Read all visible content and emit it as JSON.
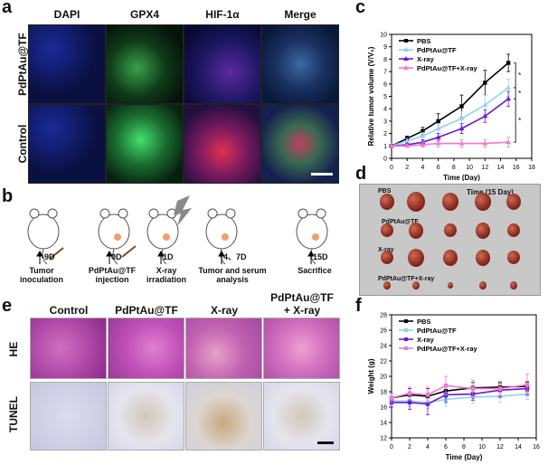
{
  "panels": {
    "a": "a",
    "b": "b",
    "c": "c",
    "d": "d",
    "e": "e",
    "f": "f"
  },
  "panel_a": {
    "columns": [
      "DAPI",
      "GPX4",
      "HIF-1α",
      "Merge"
    ],
    "rows": [
      "PdPtAu@TF",
      "Control"
    ]
  },
  "panel_b": {
    "events": [
      {
        "day": "-9D",
        "label": "Tumor\ninoculation"
      },
      {
        "day": "0D",
        "label": "PdPtAu@TF\ninjection"
      },
      {
        "day": "1D",
        "label": "X-ray\nirradiation"
      },
      {
        "day": "4、7D",
        "label": "Tumor and serum\nanalysis"
      },
      {
        "day": "15D",
        "label": "Sacrifice"
      }
    ]
  },
  "panel_d": {
    "time_label": "Time (15 Day)",
    "groups": [
      "PBS",
      "PdPtAu@TF",
      "X-ray",
      "PdPtAu@TF+X-ray"
    ]
  },
  "panel_e": {
    "columns": [
      "Control",
      "PdPtAu@TF",
      "X-ray",
      "PdPtAu@TF\n+ X-ray"
    ],
    "rows": [
      "HE",
      "TUNEL"
    ]
  },
  "chart_data": [
    {
      "type": "line",
      "panel": "c",
      "xlabel": "Time (Day)",
      "ylabel": "Relative tumor volume (V/V₀)",
      "xlim": [
        0,
        18
      ],
      "ylim": [
        0,
        10
      ],
      "xticks": [
        0,
        2,
        4,
        6,
        8,
        10,
        12,
        14,
        16,
        18
      ],
      "yticks": [
        0,
        1,
        2,
        3,
        4,
        5,
        6,
        7,
        8,
        9,
        10
      ],
      "x": [
        0,
        2,
        4,
        6,
        9,
        12,
        15
      ],
      "legend": "top-left",
      "significance": [
        "*",
        "*",
        "*"
      ],
      "series": [
        {
          "name": "PBS",
          "color": "#000000",
          "marker": "square",
          "values": [
            1.0,
            1.6,
            2.2,
            3.0,
            4.2,
            6.1,
            7.7
          ],
          "errors": [
            0.1,
            0.2,
            0.3,
            0.6,
            0.9,
            1.0,
            0.7
          ]
        },
        {
          "name": "PdPtAu@TF",
          "color": "#8fd3f0",
          "marker": "triangle",
          "values": [
            1.0,
            1.4,
            1.8,
            2.4,
            3.2,
            4.3,
            5.7
          ],
          "errors": [
            0.1,
            0.2,
            0.3,
            0.4,
            0.6,
            0.8,
            0.7
          ]
        },
        {
          "name": "X-ray",
          "color": "#6a1ad0",
          "marker": "triangle",
          "values": [
            1.0,
            1.1,
            1.3,
            1.7,
            2.4,
            3.4,
            4.8
          ],
          "errors": [
            0.1,
            0.1,
            0.2,
            0.3,
            0.4,
            0.5,
            0.6
          ]
        },
        {
          "name": "PdPtAu@TF+X-ray",
          "color": "#ee7ad0",
          "marker": "triangle",
          "values": [
            1.0,
            1.0,
            1.1,
            1.2,
            1.2,
            1.2,
            1.3
          ],
          "errors": [
            0.05,
            0.1,
            0.2,
            0.3,
            0.3,
            0.3,
            0.4
          ]
        }
      ]
    },
    {
      "type": "line",
      "panel": "f",
      "xlabel": "Time (Day)",
      "ylabel": "Weight (g)",
      "xlim": [
        0,
        16
      ],
      "ylim": [
        12,
        28
      ],
      "xticks": [
        0,
        2,
        4,
        6,
        8,
        10,
        12,
        14,
        16
      ],
      "yticks": [
        12,
        14,
        16,
        18,
        20,
        22,
        24,
        26,
        28
      ],
      "x": [
        0,
        2,
        4,
        6,
        9,
        12,
        15
      ],
      "legend": "top-left",
      "series": [
        {
          "name": "PBS",
          "color": "#000000",
          "marker": "square",
          "values": [
            17.2,
            17.6,
            17.4,
            18.1,
            18.5,
            18.6,
            18.7
          ],
          "errors": [
            0.6,
            0.8,
            1.0,
            0.8,
            0.7,
            0.6,
            0.6
          ]
        },
        {
          "name": "PdPtAu@TF",
          "color": "#8fd3f0",
          "marker": "square",
          "values": [
            16.8,
            16.8,
            16.6,
            17.0,
            17.3,
            17.4,
            17.7
          ],
          "errors": [
            0.6,
            0.7,
            0.8,
            0.9,
            0.8,
            0.8,
            0.7
          ]
        },
        {
          "name": "X-ray",
          "color": "#6a1ad0",
          "marker": "square",
          "values": [
            16.6,
            16.6,
            16.4,
            17.6,
            17.7,
            18.2,
            18.4
          ],
          "errors": [
            0.6,
            0.9,
            1.4,
            1.0,
            0.8,
            0.9,
            0.8
          ]
        },
        {
          "name": "PdPtAu@TF+X-ray",
          "color": "#ee7ad0",
          "marker": "square",
          "values": [
            17.2,
            17.8,
            17.6,
            18.8,
            18.4,
            18.4,
            18.9
          ],
          "errors": [
            0.6,
            0.8,
            1.0,
            1.2,
            1.1,
            1.0,
            1.4
          ]
        }
      ]
    }
  ]
}
